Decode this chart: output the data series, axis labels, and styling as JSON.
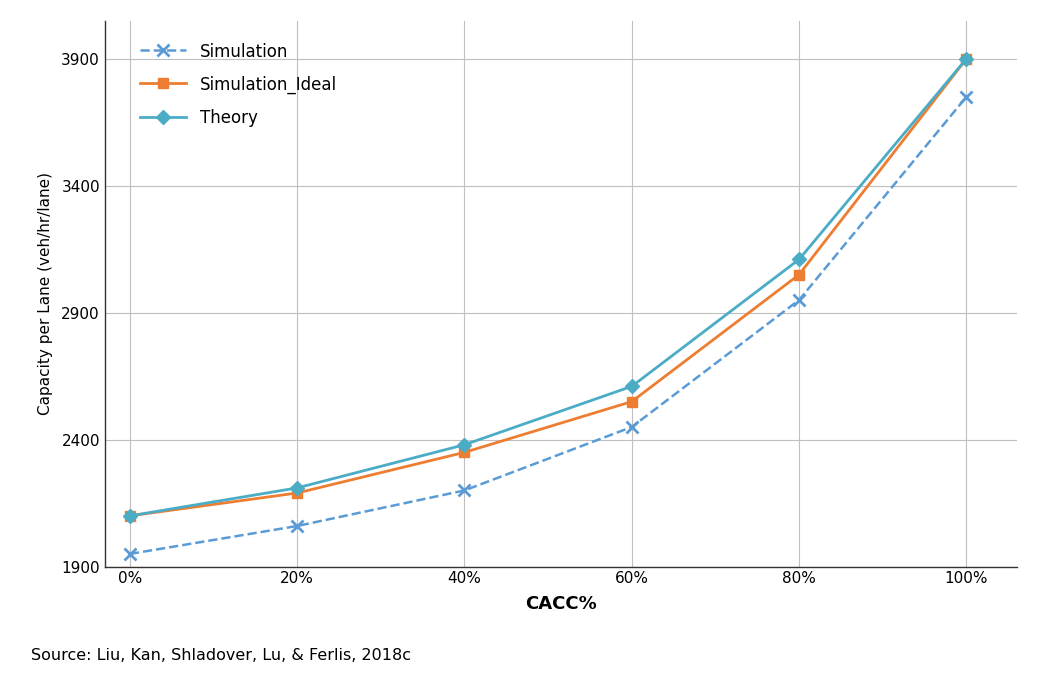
{
  "x": [
    0,
    20,
    40,
    60,
    80,
    100
  ],
  "simulation": [
    1950,
    2060,
    2200,
    2450,
    2950,
    3750
  ],
  "simulation_ideal": [
    2100,
    2190,
    2350,
    2550,
    3050,
    3900
  ],
  "theory": [
    2100,
    2210,
    2380,
    2610,
    3110,
    3900
  ],
  "simulation_color": "#5b9bd5",
  "simulation_ideal_color": "#ed7d31",
  "theory_color": "#4bacc6",
  "ylabel": "Capacity per Lane (veh/hr/lane)",
  "xlabel": "CACC%",
  "ylim": [
    1900,
    4050
  ],
  "yticks": [
    1900,
    2400,
    2900,
    3400,
    3900
  ],
  "xlim": [
    -3,
    106
  ],
  "source_text": "Source: Liu, Kan, Shladover, Lu, & Ferlis, 2018c",
  "background_color": "#ffffff",
  "grid_color": "#bfbfbf"
}
